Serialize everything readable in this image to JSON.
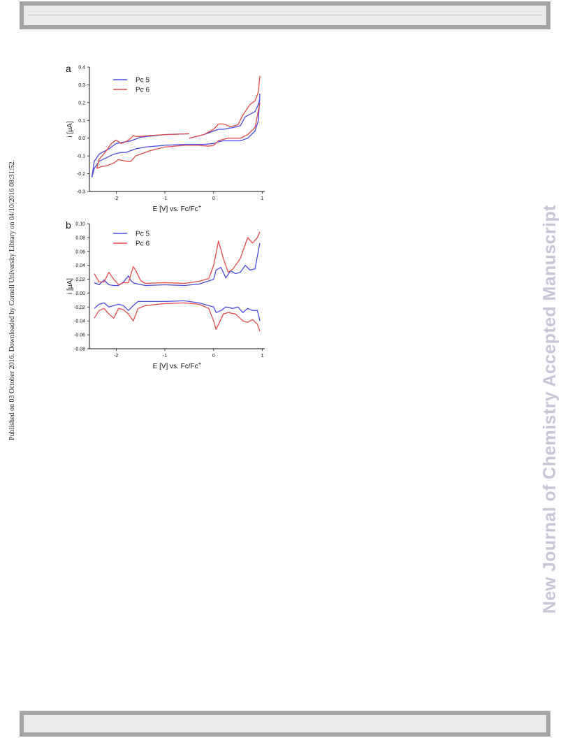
{
  "header_band": {},
  "footer_band": {},
  "side_note": "Published on 03 October 2016. Downloaded by Cornell University Library on 04/10/2016 08:31:52.",
  "watermark": "New Journal of Chemistry Accepted Manuscript",
  "colors": {
    "pc5": "#4a4ae6",
    "pc6": "#e64a4a"
  },
  "chart_data": [
    {
      "type": "line",
      "panel_label": "a",
      "xlabel": "E [V] vs. Fc/Fc",
      "xlabel_sup": "+",
      "ylabel": "i [μA]",
      "xlim": [
        -2.55,
        1.05
      ],
      "ylim": [
        -0.3,
        0.4
      ],
      "xticks": [
        -2,
        -1,
        0,
        1
      ],
      "xtick_labels": [
        "-2",
        "-1",
        "0",
        "1"
      ],
      "yticks": [
        -0.3,
        -0.2,
        -0.1,
        0.0,
        0.1,
        0.2,
        0.3,
        0.4
      ],
      "ytick_labels": [
        "-0.3",
        "-0.2",
        "-0.1",
        "0.0",
        "0.1",
        "0.2",
        "0.3",
        "0.4"
      ],
      "legend_position": "top-left",
      "series": [
        {
          "name": "Pc 5",
          "color_key": "pc5",
          "segments": [
            {
              "x": [
                -2.5,
                -2.45,
                -2.35,
                -2.2,
                -2.05,
                -1.9,
                -1.8,
                -1.6,
                -1.4,
                -1.0,
                -0.6,
                -0.2,
                0.0,
                0.1,
                0.2,
                0.4,
                0.55,
                0.7,
                0.85,
                0.92,
                0.95
              ],
              "y": [
                -0.22,
                -0.17,
                -0.13,
                -0.11,
                -0.09,
                -0.08,
                -0.08,
                -0.06,
                -0.05,
                -0.04,
                -0.035,
                -0.035,
                -0.03,
                -0.02,
                -0.015,
                -0.015,
                -0.015,
                0.0,
                0.04,
                0.1,
                0.25
              ]
            },
            {
              "x": [
                -2.5,
                -2.45,
                -2.35,
                -2.15,
                -2.0,
                -1.8,
                -1.7,
                -1.5,
                -1.3,
                -1.0,
                -0.5
              ],
              "y": [
                -0.22,
                -0.13,
                -0.09,
                -0.06,
                -0.03,
                -0.02,
                -0.015,
                0.005,
                0.012,
                0.02,
                0.025
              ]
            },
            {
              "x": [
                -0.5,
                -0.2,
                0.0,
                0.1,
                0.2,
                0.4,
                0.55,
                0.65,
                0.85,
                0.92,
                0.95
              ],
              "y": [
                0.0,
                0.02,
                0.04,
                0.05,
                0.05,
                0.06,
                0.07,
                0.12,
                0.15,
                0.19,
                0.22
              ]
            }
          ]
        },
        {
          "name": "Pc 6",
          "color_key": "pc6",
          "segments": [
            {
              "x": [
                -2.4,
                -2.3,
                -2.2,
                -2.05,
                -1.95,
                -1.8,
                -1.7,
                -1.6,
                -1.5,
                -1.3,
                -1.0,
                -0.6,
                -0.3,
                -0.1,
                0.0,
                0.1,
                0.15,
                0.3,
                0.55,
                0.7,
                0.85,
                0.95
              ],
              "y": [
                -0.17,
                -0.16,
                -0.155,
                -0.14,
                -0.12,
                -0.13,
                -0.13,
                -0.1,
                -0.09,
                -0.07,
                -0.05,
                -0.04,
                -0.04,
                -0.045,
                -0.04,
                -0.015,
                -0.01,
                0.0,
                0.0,
                0.02,
                0.06,
                0.2
              ]
            },
            {
              "x": [
                -2.4,
                -2.35,
                -2.2,
                -2.1,
                -2.0,
                -1.9,
                -1.8,
                -1.7,
                -1.65,
                -1.6,
                -1.5,
                -1.3,
                -1.0,
                -0.5
              ],
              "y": [
                -0.17,
                -0.12,
                -0.07,
                -0.03,
                -0.01,
                -0.03,
                -0.02,
                0.0,
                0.015,
                0.01,
                0.01,
                0.015,
                0.02,
                0.025
              ]
            },
            {
              "x": [
                -0.5,
                -0.2,
                0.0,
                0.1,
                0.2,
                0.35,
                0.5,
                0.6,
                0.75,
                0.85,
                0.92,
                0.95
              ],
              "y": [
                0.0,
                0.02,
                0.05,
                0.08,
                0.08,
                0.065,
                0.075,
                0.13,
                0.19,
                0.21,
                0.26,
                0.35
              ]
            }
          ]
        }
      ]
    },
    {
      "type": "line",
      "panel_label": "b",
      "xlabel": "E [V] vs. Fc/Fc",
      "xlabel_sup": "+",
      "ylabel": "i [μA]",
      "xlim": [
        -2.55,
        1.05
      ],
      "ylim": [
        -0.08,
        0.1
      ],
      "xticks": [
        -2,
        -1,
        0,
        1
      ],
      "xtick_labels": [
        "-2",
        "-1",
        "0",
        "1"
      ],
      "yticks": [
        -0.08,
        -0.06,
        -0.04,
        -0.02,
        0.0,
        0.02,
        0.04,
        0.06,
        0.08,
        0.1
      ],
      "ytick_labels": [
        "-0.08",
        "-0.06",
        "-0.04",
        "-0.02",
        "0.00",
        "0.02",
        "0.04",
        "0.06",
        "0.08",
        "0.10"
      ],
      "legend_position": "top-left",
      "series": [
        {
          "name": "Pc 5",
          "color_key": "pc5",
          "segments": [
            {
              "x": [
                -2.45,
                -2.35,
                -2.25,
                -2.15,
                -2.05,
                -1.95,
                -1.85,
                -1.75,
                -1.7,
                -1.65,
                -1.55,
                -1.4,
                -1.0,
                -0.6,
                -0.3,
                0.0,
                0.05,
                0.15,
                0.25,
                0.35,
                0.45,
                0.55,
                0.65,
                0.75,
                0.85,
                0.95
              ],
              "y": [
                0.015,
                0.012,
                0.019,
                0.012,
                0.011,
                0.011,
                0.016,
                0.025,
                0.018,
                0.015,
                0.013,
                0.011,
                0.012,
                0.011,
                0.013,
                0.02,
                0.033,
                0.037,
                0.022,
                0.032,
                0.028,
                0.03,
                0.04,
                0.033,
                0.035,
                0.072
              ]
            },
            {
              "x": [
                -2.45,
                -2.35,
                -2.25,
                -2.15,
                -2.05,
                -1.95,
                -1.85,
                -1.75,
                -1.65,
                -1.55,
                -1.4,
                -1.0,
                -0.6,
                -0.3,
                0.0,
                0.05,
                0.15,
                0.25,
                0.4,
                0.5,
                0.6,
                0.7,
                0.8,
                0.9,
                0.95
              ],
              "y": [
                -0.022,
                -0.016,
                -0.014,
                -0.02,
                -0.018,
                -0.016,
                -0.018,
                -0.025,
                -0.018,
                -0.012,
                -0.012,
                -0.012,
                -0.011,
                -0.014,
                -0.02,
                -0.028,
                -0.025,
                -0.02,
                -0.022,
                -0.02,
                -0.028,
                -0.022,
                -0.025,
                -0.025,
                -0.04
              ]
            }
          ]
        },
        {
          "name": "Pc 6",
          "color_key": "pc6",
          "segments": [
            {
              "x": [
                -2.45,
                -2.35,
                -2.25,
                -2.15,
                -2.05,
                -1.95,
                -1.85,
                -1.75,
                -1.65,
                -1.6,
                -1.5,
                -1.4,
                -1.0,
                -0.6,
                -0.3,
                -0.1,
                0.0,
                0.1,
                0.2,
                0.3,
                0.4,
                0.55,
                0.7,
                0.8,
                0.9,
                0.95
              ],
              "y": [
                0.028,
                0.016,
                0.016,
                0.03,
                0.02,
                0.012,
                0.015,
                0.015,
                0.038,
                0.033,
                0.018,
                0.014,
                0.015,
                0.014,
                0.017,
                0.021,
                0.04,
                0.075,
                0.05,
                0.03,
                0.035,
                0.05,
                0.08,
                0.072,
                0.08,
                0.088
              ]
            },
            {
              "x": [
                -2.45,
                -2.35,
                -2.25,
                -2.15,
                -2.05,
                -1.95,
                -1.85,
                -1.75,
                -1.65,
                -1.55,
                -1.4,
                -1.0,
                -0.6,
                -0.3,
                -0.1,
                0.0,
                0.05,
                0.1,
                0.2,
                0.3,
                0.45,
                0.6,
                0.7,
                0.8,
                0.9,
                0.95
              ],
              "y": [
                -0.036,
                -0.025,
                -0.022,
                -0.03,
                -0.036,
                -0.022,
                -0.024,
                -0.03,
                -0.04,
                -0.022,
                -0.018,
                -0.015,
                -0.014,
                -0.016,
                -0.022,
                -0.04,
                -0.052,
                -0.045,
                -0.03,
                -0.028,
                -0.03,
                -0.04,
                -0.042,
                -0.038,
                -0.045,
                -0.055
              ]
            }
          ]
        }
      ]
    }
  ]
}
